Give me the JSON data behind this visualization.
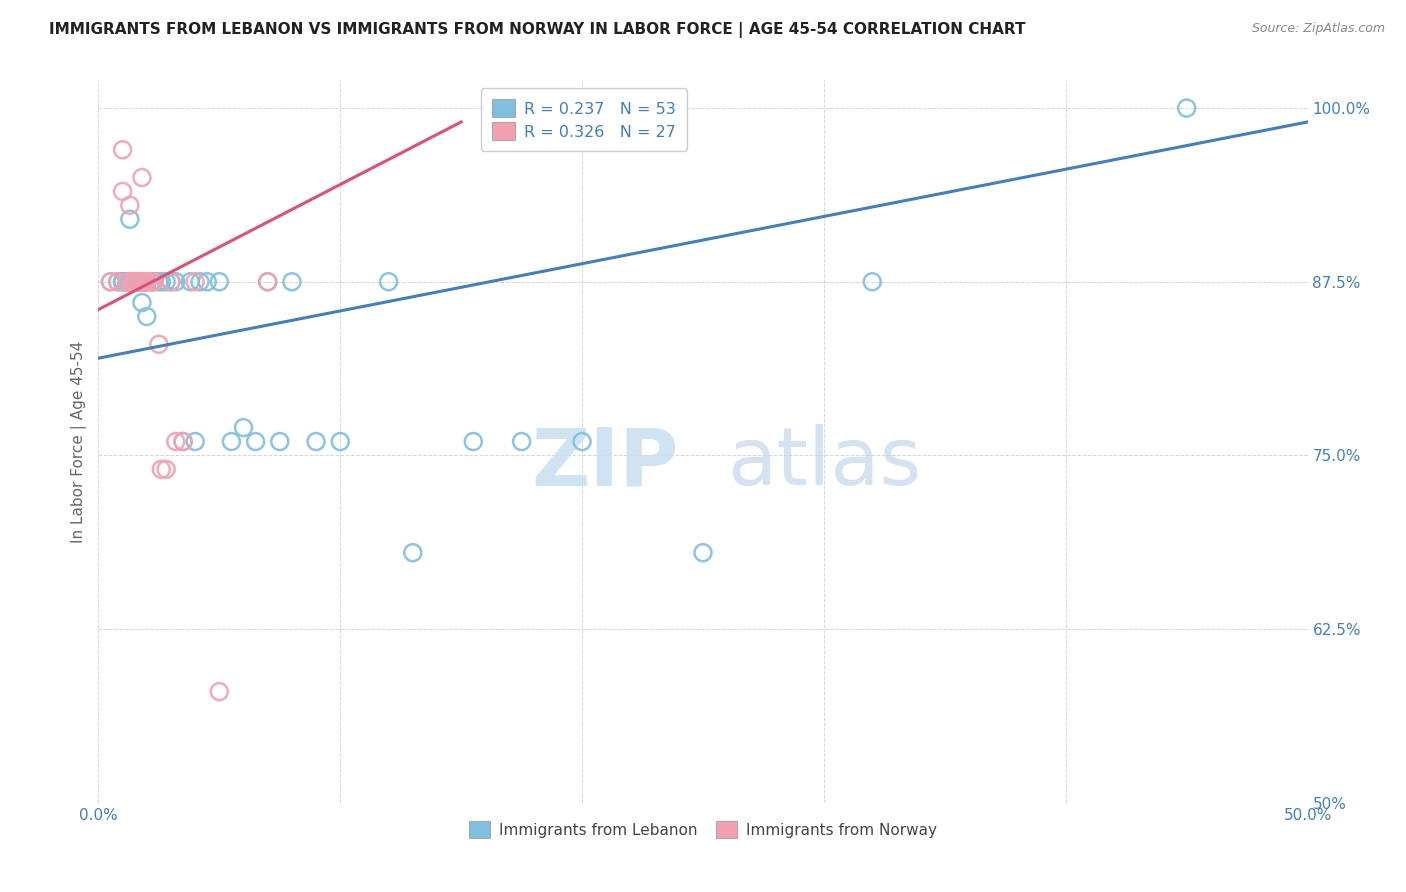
{
  "title": "IMMIGRANTS FROM LEBANON VS IMMIGRANTS FROM NORWAY IN LABOR FORCE | AGE 45-54 CORRELATION CHART",
  "source": "Source: ZipAtlas.com",
  "ylabel": "In Labor Force | Age 45-54",
  "xlim": [
    0.0,
    0.5
  ],
  "ylim": [
    0.5,
    1.02
  ],
  "ytick_values": [
    0.5,
    0.625,
    0.75,
    0.875,
    1.0
  ],
  "ytick_labels": [
    "50%",
    "62.5%",
    "75.0%",
    "87.5%",
    "100.0%"
  ],
  "xtick_values": [
    0.0,
    0.1,
    0.2,
    0.3,
    0.4,
    0.5
  ],
  "xtick_labels": [
    "0.0%",
    "",
    "",
    "",
    "",
    "50.0%"
  ],
  "blue_color": "#7fbfdf",
  "pink_color": "#f4a0b0",
  "blue_line_color": "#4080c0",
  "pink_line_color": "#e05070",
  "r_blue": 0.237,
  "n_blue": 53,
  "r_pink": 0.326,
  "n_pink": 27,
  "label_blue": "Immigrants from Lebanon",
  "label_pink": "Immigrants from Norway",
  "watermark_zip": "ZIP",
  "watermark_atlas": "atlas",
  "blue_scatter_x": [
    0.005,
    0.008,
    0.01,
    0.01,
    0.012,
    0.012,
    0.013,
    0.013,
    0.014,
    0.015,
    0.015,
    0.015,
    0.016,
    0.016,
    0.016,
    0.017,
    0.017,
    0.018,
    0.018,
    0.018,
    0.019,
    0.019,
    0.02,
    0.02,
    0.022,
    0.023,
    0.025,
    0.026,
    0.028,
    0.03,
    0.032,
    0.035,
    0.038,
    0.04,
    0.042,
    0.045,
    0.05,
    0.055,
    0.06,
    0.065,
    0.07,
    0.075,
    0.08,
    0.09,
    0.1,
    0.12,
    0.13,
    0.155,
    0.175,
    0.2,
    0.25,
    0.32,
    0.45
  ],
  "blue_scatter_y": [
    0.875,
    0.875,
    0.875,
    0.875,
    0.875,
    0.875,
    0.92,
    0.875,
    0.875,
    0.875,
    0.875,
    0.875,
    0.875,
    0.875,
    0.875,
    0.875,
    0.875,
    0.875,
    0.86,
    0.875,
    0.875,
    0.875,
    0.85,
    0.875,
    0.875,
    0.875,
    0.875,
    0.875,
    0.875,
    0.875,
    0.875,
    0.76,
    0.875,
    0.76,
    0.875,
    0.875,
    0.875,
    0.76,
    0.77,
    0.76,
    0.875,
    0.76,
    0.875,
    0.76,
    0.76,
    0.875,
    0.68,
    0.76,
    0.76,
    0.76,
    0.68,
    0.875,
    1.0
  ],
  "pink_scatter_x": [
    0.005,
    0.008,
    0.01,
    0.01,
    0.012,
    0.013,
    0.014,
    0.015,
    0.015,
    0.016,
    0.017,
    0.018,
    0.018,
    0.019,
    0.02,
    0.02,
    0.022,
    0.023,
    0.025,
    0.026,
    0.028,
    0.03,
    0.032,
    0.035,
    0.04,
    0.05,
    0.07
  ],
  "pink_scatter_y": [
    0.875,
    0.875,
    0.97,
    0.94,
    0.875,
    0.93,
    0.875,
    0.875,
    0.875,
    0.875,
    0.875,
    0.875,
    0.95,
    0.875,
    0.875,
    0.875,
    0.875,
    0.875,
    0.83,
    0.74,
    0.74,
    0.875,
    0.76,
    0.76,
    0.875,
    0.58,
    0.875
  ],
  "blue_line_x0": 0.0,
  "blue_line_y0": 0.82,
  "blue_line_x1": 0.5,
  "blue_line_y1": 0.99,
  "pink_line_x0": 0.0,
  "pink_line_y0": 0.855,
  "pink_line_x1": 0.15,
  "pink_line_y1": 0.99
}
